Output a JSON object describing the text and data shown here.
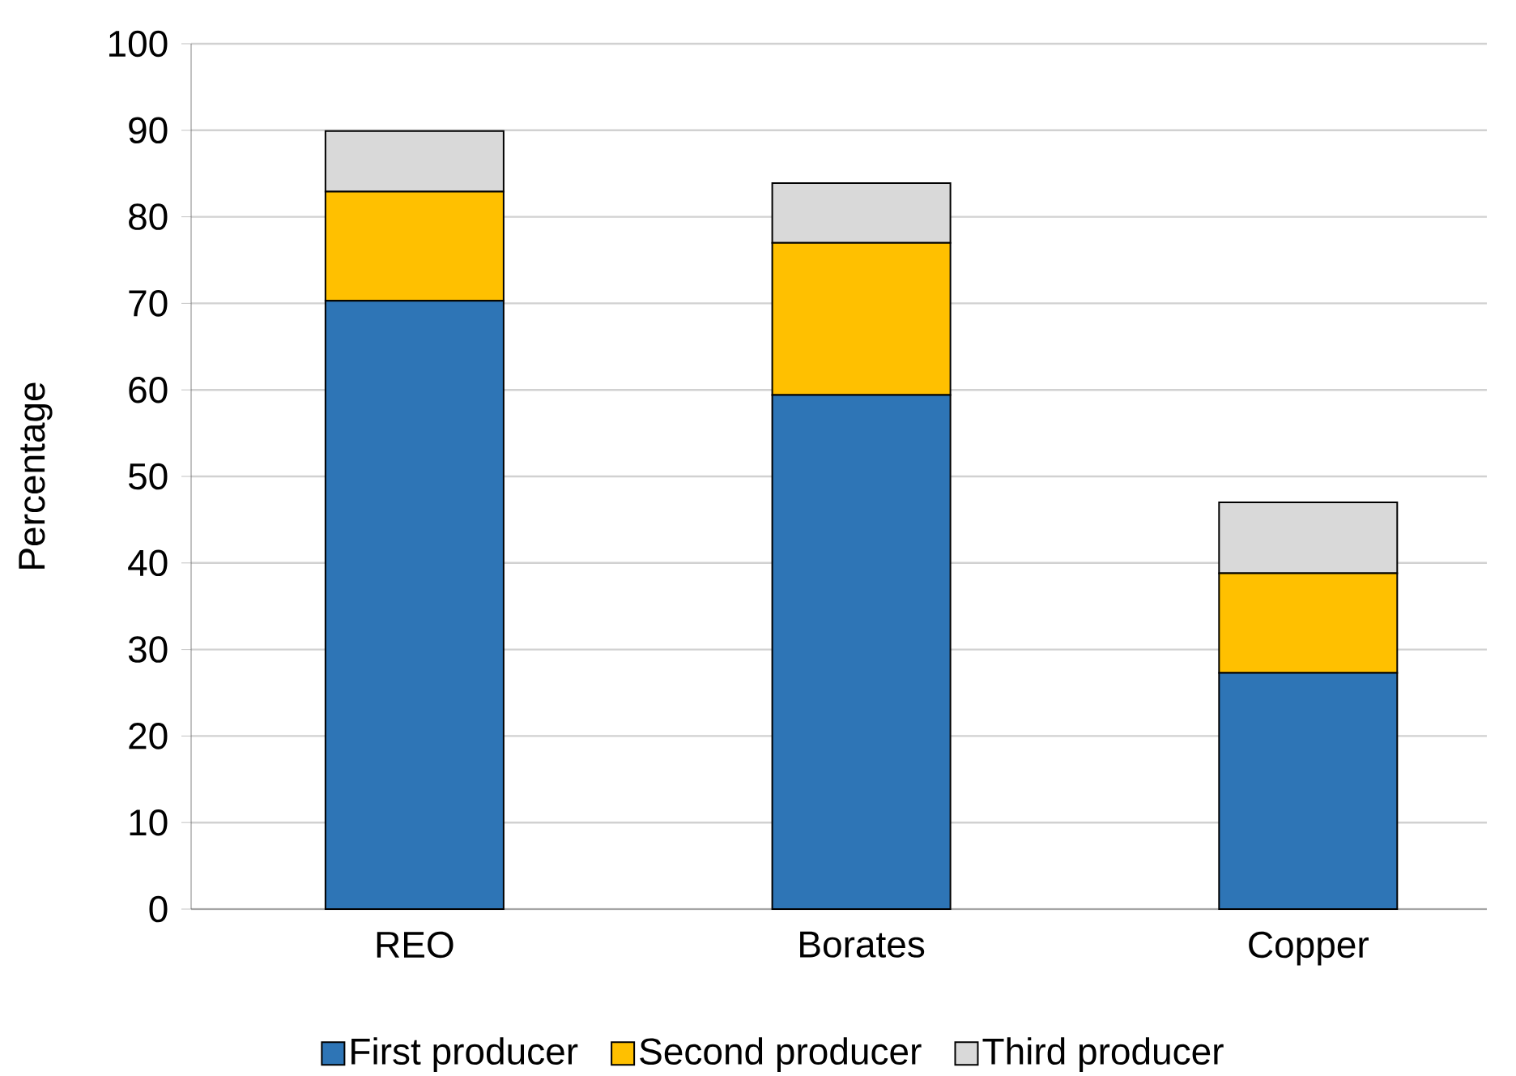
{
  "chart_data": {
    "type": "bar",
    "stacked": true,
    "ylabel": "Percentage",
    "categories": [
      "REO",
      "Borates",
      "Copper"
    ],
    "series": [
      {
        "name": "First producer",
        "color": "#2e75b6",
        "values": [
          70.3,
          59.4,
          27.3
        ]
      },
      {
        "name": "Second producer",
        "color": "#ffc000",
        "values": [
          12.6,
          17.6,
          11.5
        ]
      },
      {
        "name": "Third producer",
        "color": "#d9d9d9",
        "values": [
          7.0,
          6.9,
          8.2
        ]
      }
    ],
    "ylim": [
      0,
      100
    ],
    "yticks": [
      0,
      10,
      20,
      30,
      40,
      50,
      60,
      70,
      80,
      90,
      100
    ],
    "grid": "y",
    "legend": "bottom"
  }
}
